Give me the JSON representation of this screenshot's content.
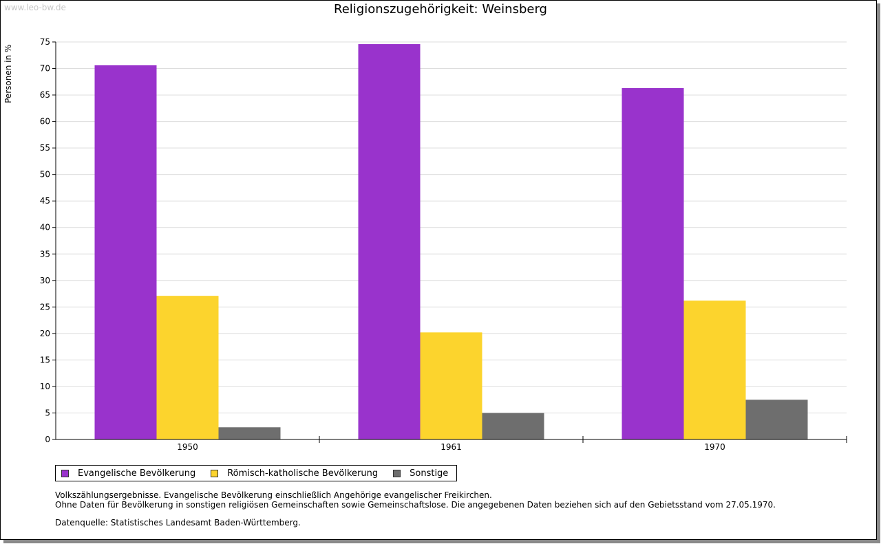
{
  "watermark": "www.leo-bw.de",
  "chart_data": {
    "type": "bar",
    "title": "Religionszugehörigkeit: Weinsberg",
    "ylabel": "Personen in %",
    "xlabel": "",
    "categories": [
      "1950",
      "1961",
      "1970"
    ],
    "ylim": [
      0,
      75
    ],
    "yticks": [
      "0",
      "5",
      "10",
      "15",
      "20",
      "25",
      "30",
      "35",
      "40",
      "45",
      "50",
      "55",
      "60",
      "65",
      "70",
      "75"
    ],
    "grid": true,
    "legend_position": "bottom-left",
    "series": [
      {
        "name": "Evangelische Bevölkerung",
        "color": "#9933cc",
        "values": [
          70.6,
          74.6,
          66.3
        ]
      },
      {
        "name": "Römisch-katholische Bevölkerung",
        "color": "#fcd42d",
        "values": [
          27.1,
          20.2,
          26.2
        ]
      },
      {
        "name": "Sonstige",
        "color": "#6e6e6e",
        "values": [
          2.3,
          5.0,
          7.5
        ]
      }
    ]
  },
  "notes": {
    "line1": "Volkszählungsergebnisse. Evangelische Bevölkerung einschließlich Angehörige evangelischer Freikirchen.",
    "line2": "Ohne Daten für Bevölkerung in sonstigen religiösen Gemeinschaften sowie Gemeinschaftslose. Die angegebenen Daten beziehen sich auf den Gebietsstand vom 27.05.1970.",
    "source": "Datenquelle: Statistisches Landesamt Baden-Württemberg."
  }
}
